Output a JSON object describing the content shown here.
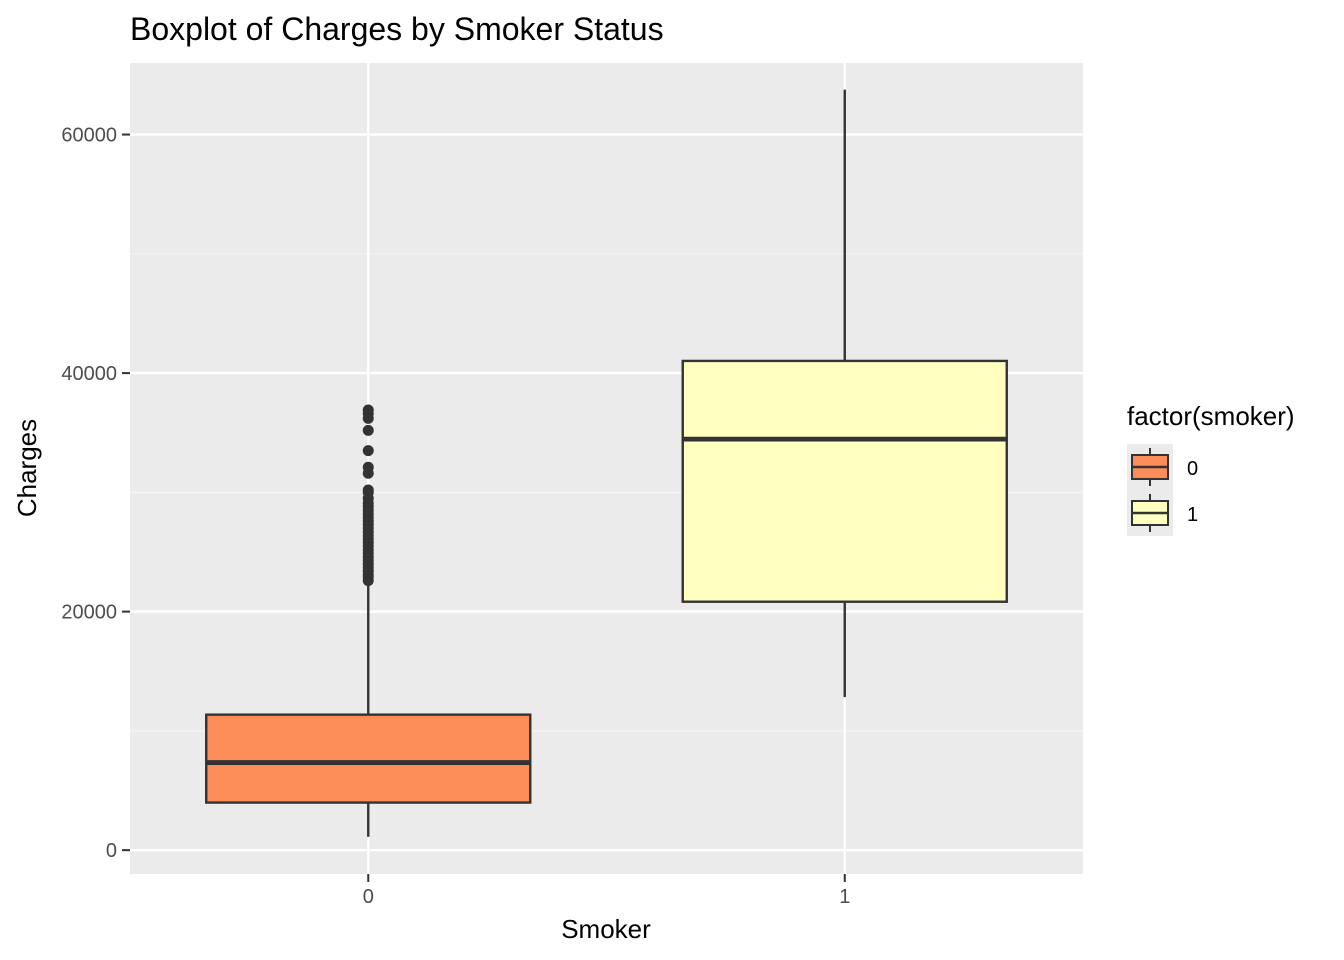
{
  "chart_data": {
    "type": "boxplot",
    "title": "Boxplot of Charges by Smoker Status",
    "xlabel": "Smoker",
    "ylabel": "Charges",
    "ylim": [
      -2000,
      66000
    ],
    "yticks": [
      0,
      20000,
      40000,
      60000
    ],
    "ytick_labels": [
      "0",
      "20000",
      "40000",
      "60000"
    ],
    "categories": [
      "0",
      "1"
    ],
    "grid": true,
    "legend": {
      "title": "factor(smoker)",
      "position": "right",
      "entries": [
        {
          "label": "0",
          "color": "#fc8d59"
        },
        {
          "label": "1",
          "color": "#ffffbf"
        }
      ]
    },
    "series": [
      {
        "category": "0",
        "color": "#fc8d59",
        "whisker_low": 1120,
        "q1": 3990,
        "median": 7345,
        "q3": 11360,
        "whisker_high": 22400,
        "outliers": [
          22600,
          22900,
          23100,
          23400,
          23700,
          24000,
          24300,
          24600,
          24900,
          25200,
          25500,
          25800,
          26100,
          26400,
          26700,
          27000,
          27300,
          27600,
          27900,
          28200,
          28500,
          28800,
          29100,
          29500,
          30000,
          30200,
          31600,
          32100,
          33500,
          35200,
          36200,
          36600,
          36900
        ]
      },
      {
        "category": "1",
        "color": "#ffffbf",
        "whisker_low": 12830,
        "q1": 20830,
        "median": 34460,
        "q3": 41020,
        "whisker_high": 63770,
        "outliers": []
      }
    ]
  },
  "colors": {
    "panel_background": "#ebebeb",
    "grid_major": "#ffffff",
    "grid_minor": "#f5f5f5",
    "box_outline": "#333333"
  }
}
